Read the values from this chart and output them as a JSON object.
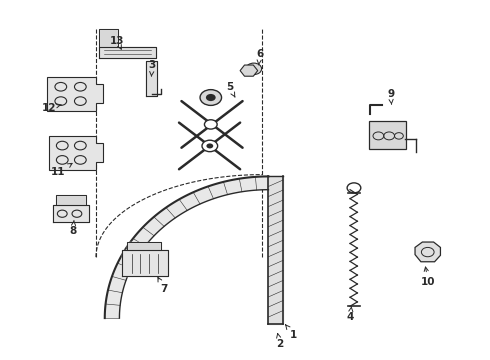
{
  "background_color": "#ffffff",
  "line_color": "#2a2a2a",
  "figsize": [
    4.9,
    3.6
  ],
  "dpi": 100,
  "labels": {
    "1": [
      0.6,
      0.068,
      0.582,
      0.098
    ],
    "2": [
      0.572,
      0.042,
      0.565,
      0.082
    ],
    "3": [
      0.31,
      0.82,
      0.308,
      0.78
    ],
    "4": [
      0.715,
      0.118,
      0.718,
      0.148
    ],
    "5": [
      0.468,
      0.76,
      0.48,
      0.73
    ],
    "6": [
      0.53,
      0.85,
      0.528,
      0.82
    ],
    "7": [
      0.335,
      0.195,
      0.318,
      0.238
    ],
    "8": [
      0.148,
      0.358,
      0.15,
      0.388
    ],
    "9": [
      0.798,
      0.74,
      0.8,
      0.71
    ],
    "10": [
      0.875,
      0.215,
      0.868,
      0.268
    ],
    "11": [
      0.118,
      0.522,
      0.148,
      0.548
    ],
    "12": [
      0.098,
      0.702,
      0.13,
      0.712
    ],
    "13": [
      0.238,
      0.888,
      0.248,
      0.862
    ]
  }
}
